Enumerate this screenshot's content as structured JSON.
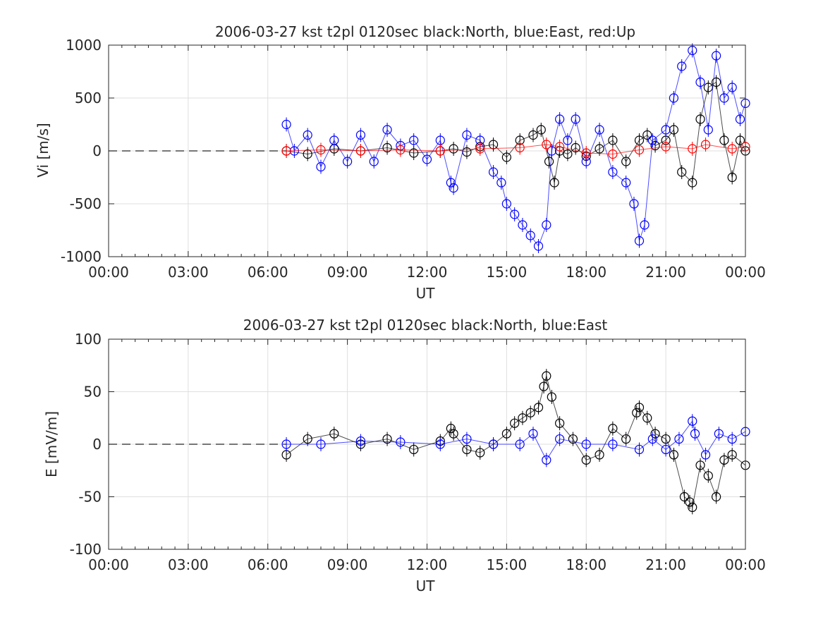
{
  "chart_data": [
    {
      "type": "scatter",
      "title": "2006-03-27 kst t2pl 0120sec black:North, blue:East, red:Up",
      "xlabel": "UT",
      "ylabel": "Vi [m/s]",
      "xlim": [
        0,
        24
      ],
      "ylim": [
        -1000,
        1000
      ],
      "x_ticks": [
        "00:00",
        "03:00",
        "06:00",
        "09:00",
        "12:00",
        "15:00",
        "18:00",
        "21:00",
        "00:00"
      ],
      "y_ticks": [
        "-1000",
        "-500",
        "0",
        "500",
        "1000"
      ],
      "grid": true,
      "reference_line": 0,
      "series": [
        {
          "legend": "North",
          "color": "#000000",
          "marker": "circle",
          "error_bars": true,
          "x": [
            6.7,
            7.5,
            8.5,
            9.5,
            10.5,
            11.5,
            12.5,
            13.0,
            13.5,
            14.0,
            14.5,
            15.0,
            15.5,
            16.0,
            16.3,
            16.6,
            16.8,
            17.0,
            17.3,
            17.6,
            18.0,
            18.5,
            19.0,
            19.5,
            20.0,
            20.3,
            20.6,
            21.0,
            21.3,
            21.6,
            22.0,
            22.3,
            22.6,
            22.9,
            23.2,
            23.5,
            23.8,
            24.0
          ],
          "y": [
            0,
            -30,
            20,
            0,
            30,
            -20,
            0,
            20,
            -10,
            40,
            60,
            -60,
            100,
            150,
            200,
            -100,
            -300,
            0,
            -30,
            30,
            -50,
            20,
            100,
            -100,
            100,
            150,
            50,
            100,
            200,
            -200,
            -300,
            300,
            600,
            650,
            100,
            -250,
            100,
            0
          ]
        },
        {
          "legend": "East",
          "color": "#0000ff",
          "marker": "circle",
          "error_bars": true,
          "x": [
            6.7,
            7.0,
            7.5,
            8.0,
            8.5,
            9.0,
            9.5,
            10.0,
            10.5,
            11.0,
            11.5,
            12.0,
            12.5,
            12.9,
            13.0,
            13.5,
            14.0,
            14.5,
            14.8,
            15.0,
            15.3,
            15.6,
            15.9,
            16.2,
            16.5,
            16.7,
            17.0,
            17.3,
            17.6,
            18.0,
            18.5,
            19.0,
            19.5,
            19.8,
            20.0,
            20.2,
            20.5,
            21.0,
            21.3,
            21.6,
            22.0,
            22.3,
            22.6,
            22.9,
            23.2,
            23.5,
            23.8,
            24.0
          ],
          "y": [
            250,
            0,
            150,
            -150,
            100,
            -100,
            150,
            -100,
            200,
            50,
            100,
            -80,
            100,
            -300,
            -350,
            150,
            100,
            -200,
            -300,
            -500,
            -600,
            -700,
            -800,
            -900,
            -700,
            0,
            300,
            100,
            300,
            -100,
            200,
            -200,
            -300,
            -500,
            -850,
            -700,
            100,
            200,
            500,
            800,
            950,
            650,
            200,
            900,
            500,
            600,
            300,
            450
          ]
        },
        {
          "legend": "Up",
          "color": "#ff0000",
          "marker": "circle",
          "error_bars": true,
          "x": [
            6.7,
            8.0,
            9.5,
            11.0,
            12.5,
            14.0,
            15.5,
            16.5,
            17.0,
            18.0,
            19.0,
            20.0,
            21.0,
            22.0,
            22.5,
            23.5,
            24.0
          ],
          "y": [
            0,
            10,
            0,
            10,
            0,
            20,
            30,
            60,
            40,
            -20,
            -30,
            10,
            40,
            20,
            60,
            20,
            40
          ]
        }
      ]
    },
    {
      "type": "scatter",
      "title": "2006-03-27 kst t2pl 0120sec black:North, blue:East",
      "xlabel": "UT",
      "ylabel": "E [mV/m]",
      "xlim": [
        0,
        24
      ],
      "ylim": [
        -100,
        100
      ],
      "x_ticks": [
        "00:00",
        "03:00",
        "06:00",
        "09:00",
        "12:00",
        "15:00",
        "18:00",
        "21:00",
        "00:00"
      ],
      "y_ticks": [
        "-100",
        "-50",
        "0",
        "50",
        "100"
      ],
      "grid": true,
      "reference_line": 0,
      "series": [
        {
          "legend": "North",
          "color": "#000000",
          "marker": "circle",
          "error_bars": true,
          "x": [
            6.7,
            7.5,
            8.5,
            9.5,
            10.5,
            11.5,
            12.5,
            12.9,
            13.0,
            13.5,
            14.0,
            14.5,
            15.0,
            15.3,
            15.6,
            15.9,
            16.2,
            16.4,
            16.5,
            16.7,
            17.0,
            17.5,
            18.0,
            18.5,
            19.0,
            19.5,
            19.9,
            20.0,
            20.3,
            20.6,
            21.0,
            21.3,
            21.7,
            21.9,
            22.0,
            22.3,
            22.6,
            22.9,
            23.2,
            23.5,
            24.0
          ],
          "y": [
            -10,
            5,
            10,
            0,
            5,
            -5,
            3,
            15,
            10,
            -5,
            -8,
            0,
            10,
            20,
            25,
            30,
            35,
            55,
            65,
            45,
            20,
            5,
            -15,
            -10,
            15,
            5,
            30,
            35,
            25,
            10,
            5,
            -10,
            -50,
            -55,
            -60,
            -20,
            -30,
            -50,
            -15,
            -10,
            -20
          ]
        },
        {
          "legend": "East",
          "color": "#0000ff",
          "marker": "circle",
          "error_bars": true,
          "x": [
            6.7,
            8.0,
            9.5,
            11.0,
            12.5,
            13.5,
            14.5,
            15.5,
            16.0,
            16.5,
            17.0,
            18.0,
            19.0,
            20.0,
            20.5,
            21.0,
            21.5,
            22.0,
            22.1,
            22.5,
            23.0,
            23.5,
            24.0
          ],
          "y": [
            0,
            0,
            3,
            2,
            0,
            5,
            0,
            0,
            10,
            -15,
            5,
            0,
            0,
            -5,
            5,
            -5,
            5,
            22,
            10,
            -10,
            10,
            5,
            12
          ]
        }
      ]
    }
  ]
}
